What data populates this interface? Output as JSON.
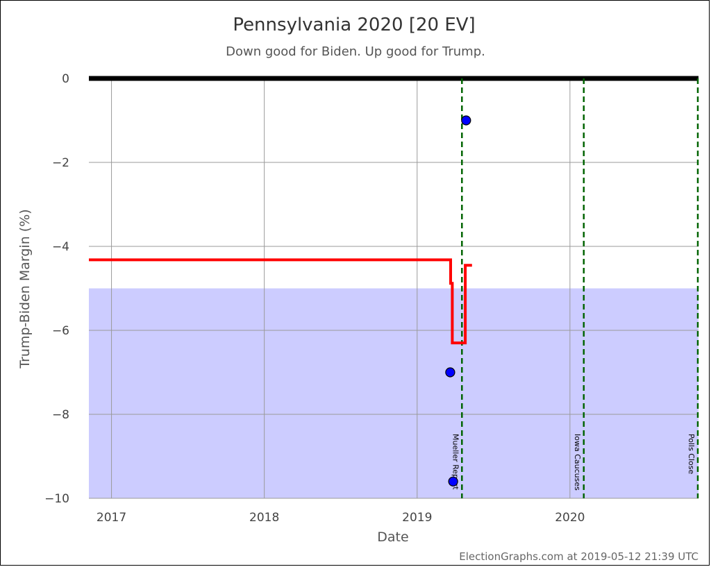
{
  "chart_data": {
    "type": "line",
    "title": "Pennsylvania 2020 [20 EV]",
    "subtitle": "Down good for Biden. Up good for Trump.",
    "xlabel": "Date",
    "ylabel": "Trump-Biden Margin (%)",
    "footer": "ElectionGraphs.com at 2019-05-12 21:39 UTC",
    "xlim": [
      "2016-11-08",
      "2020-11-03"
    ],
    "ylim": [
      -10,
      0
    ],
    "grid": true,
    "x_ticks": [
      {
        "date": "2017-01-01",
        "label": "2017"
      },
      {
        "date": "2018-01-01",
        "label": "2018"
      },
      {
        "date": "2019-01-01",
        "label": "2019"
      },
      {
        "date": "2020-01-01",
        "label": "2020"
      }
    ],
    "y_ticks": [
      {
        "value": 0,
        "label": "0"
      },
      {
        "value": -2,
        "label": "−2"
      },
      {
        "value": -4,
        "label": "−4"
      },
      {
        "value": -6,
        "label": "−6"
      },
      {
        "value": -8,
        "label": "−8"
      },
      {
        "value": -10,
        "label": "−10"
      }
    ],
    "band": {
      "from": -10,
      "to": -5,
      "color": "#ccccff"
    },
    "zero_line_color": "#000000",
    "average_color": "#ff0000",
    "poll_color": "#0000ff",
    "event_color": "#006400",
    "average_line": [
      {
        "x": "2016-11-08",
        "y": -4.32
      },
      {
        "x": "2019-03-22",
        "y": -4.32
      },
      {
        "x": "2019-03-22",
        "y": -4.88
      },
      {
        "x": "2019-03-26",
        "y": -4.88
      },
      {
        "x": "2019-03-26",
        "y": -6.3
      },
      {
        "x": "2019-04-26",
        "y": -6.3
      },
      {
        "x": "2019-04-26",
        "y": -4.45
      },
      {
        "x": "2019-05-12",
        "y": -4.45
      }
    ],
    "polls": [
      {
        "x": "2019-04-28",
        "y": -1
      },
      {
        "x": "2019-03-21",
        "y": -7
      },
      {
        "x": "2019-03-28",
        "y": -9.6
      }
    ],
    "events": [
      {
        "date": "2019-04-18",
        "label": "Mueller Report"
      },
      {
        "date": "2020-02-03",
        "label": "Iowa Caucuses"
      },
      {
        "date": "2020-11-03",
        "label": "Polls Close"
      }
    ]
  }
}
